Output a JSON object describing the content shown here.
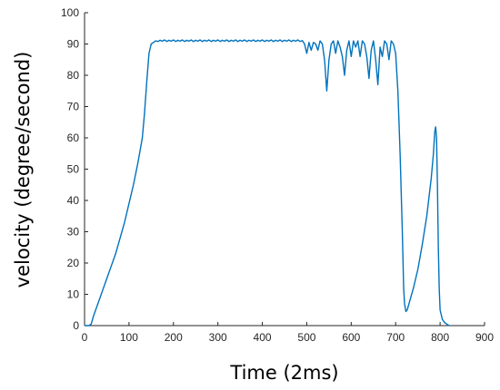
{
  "chart_data": {
    "type": "line",
    "title": "",
    "xlabel": "Time (2ms)",
    "ylabel": "velocity (degree/second)",
    "xlim": [
      0,
      900
    ],
    "ylim": [
      0,
      100
    ],
    "x_ticks": [
      0,
      100,
      200,
      300,
      400,
      500,
      600,
      700,
      800,
      900
    ],
    "y_ticks": [
      0,
      10,
      20,
      30,
      40,
      50,
      60,
      70,
      80,
      90,
      100
    ],
    "grid": false,
    "legend": "none",
    "series": [
      {
        "color": "#0072BD",
        "points": [
          [
            0,
            0
          ],
          [
            10,
            0
          ],
          [
            15,
            0.5
          ],
          [
            20,
            3
          ],
          [
            30,
            7
          ],
          [
            40,
            11
          ],
          [
            50,
            15
          ],
          [
            60,
            19
          ],
          [
            70,
            23
          ],
          [
            80,
            28
          ],
          [
            90,
            33
          ],
          [
            100,
            39
          ],
          [
            110,
            45
          ],
          [
            120,
            52
          ],
          [
            130,
            60
          ],
          [
            135,
            68
          ],
          [
            140,
            78
          ],
          [
            145,
            87
          ],
          [
            150,
            90
          ],
          [
            155,
            90.5
          ],
          [
            160,
            91
          ],
          [
            165,
            90.8
          ],
          [
            170,
            91.2
          ],
          [
            175,
            90.9
          ],
          [
            180,
            91.3
          ],
          [
            185,
            90.8
          ],
          [
            190,
            91.2
          ],
          [
            195,
            90.9
          ],
          [
            200,
            91.3
          ],
          [
            205,
            90.8
          ],
          [
            210,
            91.2
          ],
          [
            215,
            90.9
          ],
          [
            220,
            91.3
          ],
          [
            225,
            90.8
          ],
          [
            230,
            91.2
          ],
          [
            235,
            90.9
          ],
          [
            240,
            91.3
          ],
          [
            245,
            90.8
          ],
          [
            250,
            91.2
          ],
          [
            255,
            90.9
          ],
          [
            260,
            91.3
          ],
          [
            265,
            90.8
          ],
          [
            270,
            91.2
          ],
          [
            275,
            90.9
          ],
          [
            280,
            91.3
          ],
          [
            285,
            90.8
          ],
          [
            290,
            91.2
          ],
          [
            295,
            90.9
          ],
          [
            300,
            91.3
          ],
          [
            305,
            90.8
          ],
          [
            310,
            91.2
          ],
          [
            315,
            90.9
          ],
          [
            320,
            91.3
          ],
          [
            325,
            90.8
          ],
          [
            330,
            91.2
          ],
          [
            335,
            90.9
          ],
          [
            340,
            91.3
          ],
          [
            345,
            90.8
          ],
          [
            350,
            91.2
          ],
          [
            355,
            90.9
          ],
          [
            360,
            91.3
          ],
          [
            365,
            90.8
          ],
          [
            370,
            91.2
          ],
          [
            375,
            90.9
          ],
          [
            380,
            91.3
          ],
          [
            385,
            90.8
          ],
          [
            390,
            91.2
          ],
          [
            395,
            90.9
          ],
          [
            400,
            91.3
          ],
          [
            405,
            90.8
          ],
          [
            410,
            91.2
          ],
          [
            415,
            90.9
          ],
          [
            420,
            91.3
          ],
          [
            425,
            90.8
          ],
          [
            430,
            91.2
          ],
          [
            435,
            90.9
          ],
          [
            440,
            91.3
          ],
          [
            445,
            90.8
          ],
          [
            450,
            91.2
          ],
          [
            455,
            90.9
          ],
          [
            460,
            91.3
          ],
          [
            465,
            90.8
          ],
          [
            470,
            91.2
          ],
          [
            475,
            90.9
          ],
          [
            480,
            91.3
          ],
          [
            485,
            90.8
          ],
          [
            490,
            91.1
          ],
          [
            495,
            90
          ],
          [
            500,
            87
          ],
          [
            505,
            90.5
          ],
          [
            510,
            88
          ],
          [
            515,
            90.5
          ],
          [
            520,
            90
          ],
          [
            525,
            88
          ],
          [
            530,
            91
          ],
          [
            535,
            90
          ],
          [
            540,
            85
          ],
          [
            545,
            75
          ],
          [
            550,
            85
          ],
          [
            555,
            90
          ],
          [
            560,
            91
          ],
          [
            565,
            87
          ],
          [
            570,
            91
          ],
          [
            575,
            89
          ],
          [
            580,
            86
          ],
          [
            585,
            80
          ],
          [
            590,
            88
          ],
          [
            595,
            91
          ],
          [
            600,
            86
          ],
          [
            605,
            91
          ],
          [
            610,
            89
          ],
          [
            615,
            91
          ],
          [
            620,
            86
          ],
          [
            625,
            91
          ],
          [
            630,
            90
          ],
          [
            635,
            86
          ],
          [
            640,
            79
          ],
          [
            645,
            88
          ],
          [
            650,
            91
          ],
          [
            655,
            85
          ],
          [
            660,
            77
          ],
          [
            665,
            89
          ],
          [
            670,
            86
          ],
          [
            675,
            91
          ],
          [
            680,
            90
          ],
          [
            685,
            85
          ],
          [
            690,
            91
          ],
          [
            695,
            90
          ],
          [
            700,
            87
          ],
          [
            705,
            75
          ],
          [
            710,
            55
          ],
          [
            715,
            30
          ],
          [
            718,
            12
          ],
          [
            720,
            7
          ],
          [
            723,
            4.5
          ],
          [
            726,
            5
          ],
          [
            730,
            7
          ],
          [
            740,
            12
          ],
          [
            750,
            18
          ],
          [
            760,
            26
          ],
          [
            770,
            35
          ],
          [
            780,
            47
          ],
          [
            785,
            55
          ],
          [
            788,
            62
          ],
          [
            790,
            63.5
          ],
          [
            792,
            60
          ],
          [
            794,
            45
          ],
          [
            796,
            25
          ],
          [
            798,
            12
          ],
          [
            800,
            5
          ],
          [
            805,
            2
          ],
          [
            810,
            1
          ],
          [
            815,
            0.5
          ],
          [
            820,
            0
          ]
        ]
      }
    ]
  }
}
